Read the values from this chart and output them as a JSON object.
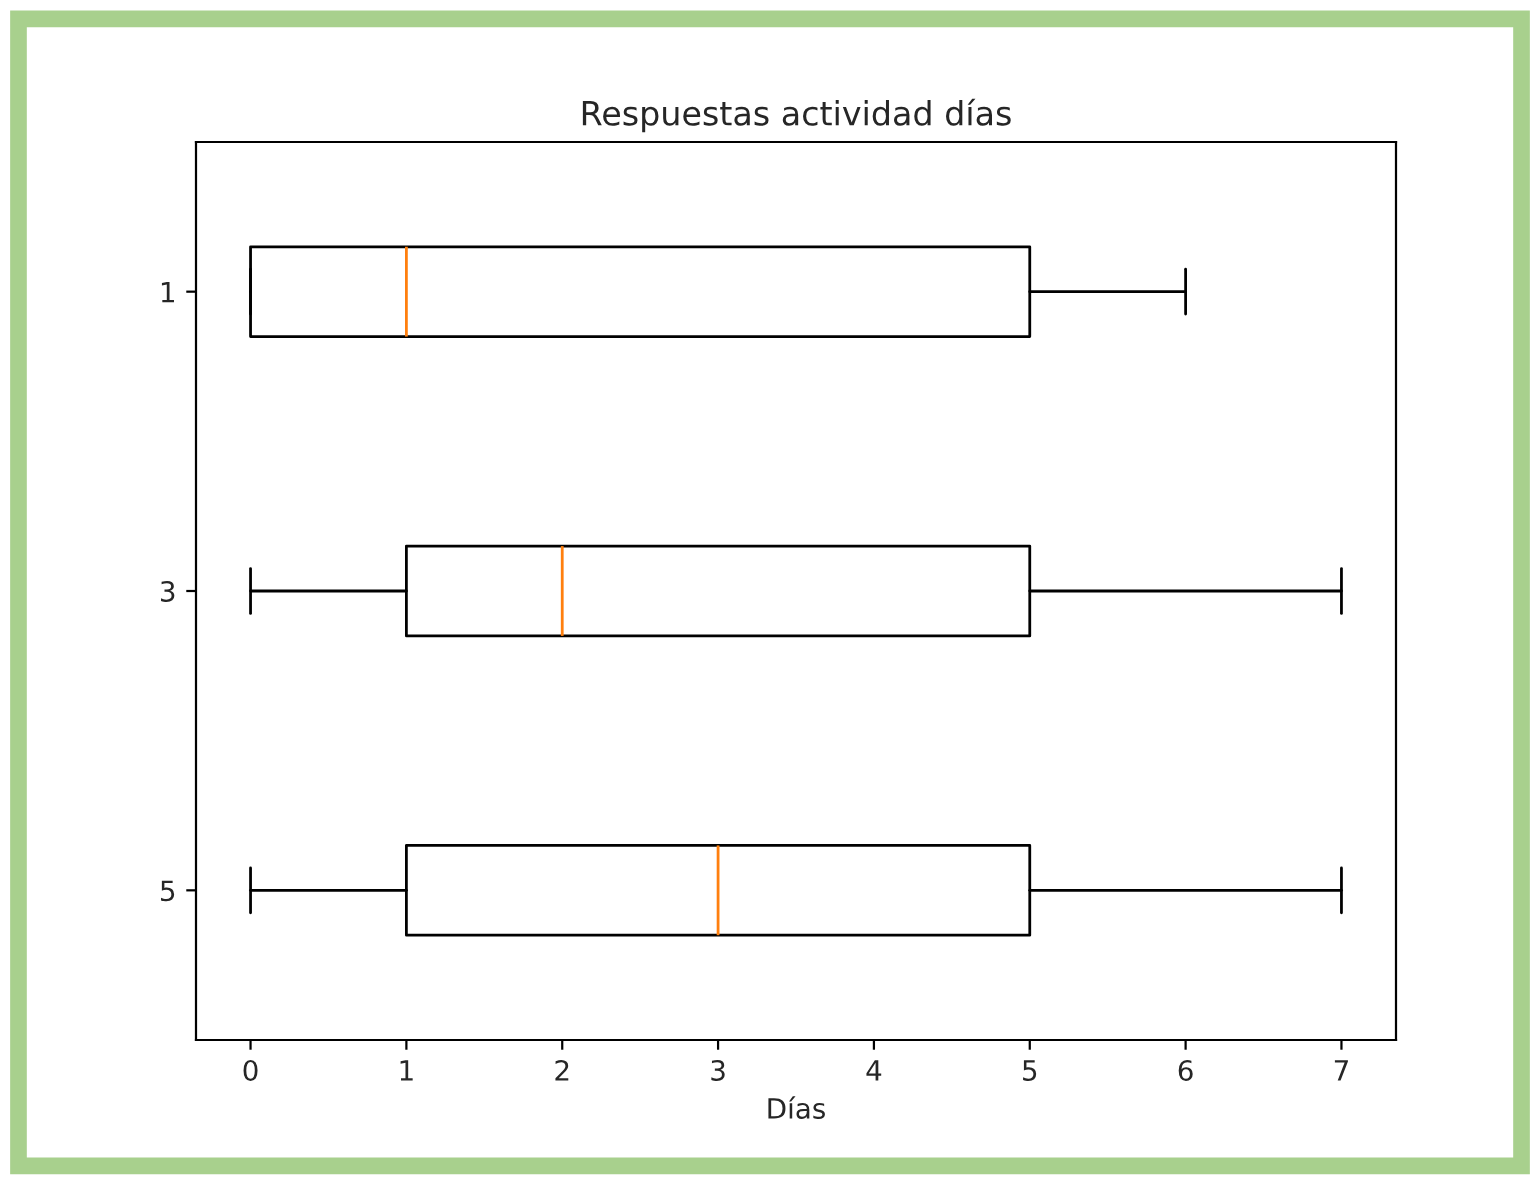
{
  "chart_data": {
    "type": "box",
    "title": "Respuestas actividad días",
    "xlabel": "Días",
    "orientation": "horizontal",
    "categories": [
      "1",
      "3",
      "5"
    ],
    "boxes": [
      {
        "low": 0,
        "q1": 0,
        "median": 1,
        "q3": 5,
        "high": 6
      },
      {
        "low": 0,
        "q1": 1,
        "median": 2,
        "q3": 5,
        "high": 7
      },
      {
        "low": 0,
        "q1": 1,
        "median": 3,
        "q3": 5,
        "high": 7
      }
    ],
    "xlim": [
      -0.35,
      7.35
    ],
    "xticks": [
      0,
      1,
      2,
      3,
      4,
      5,
      6,
      7
    ]
  }
}
